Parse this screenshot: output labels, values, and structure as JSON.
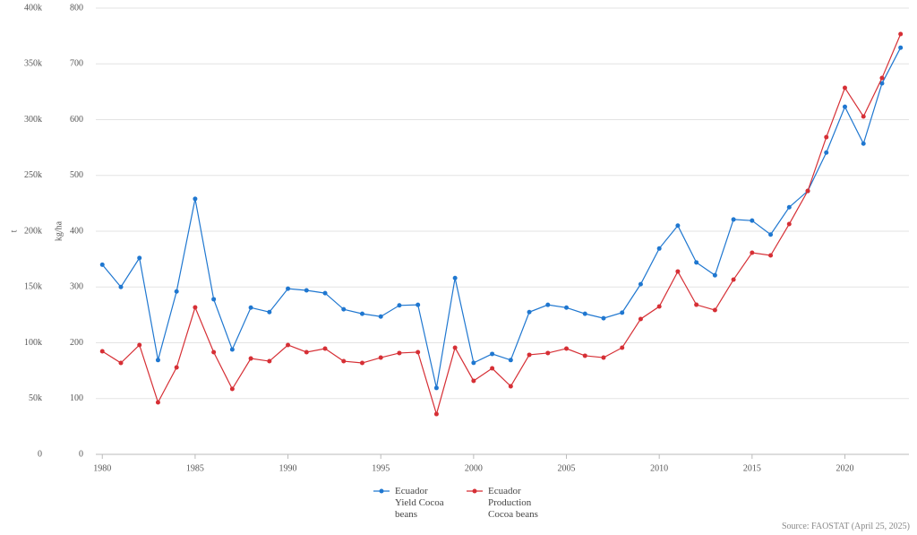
{
  "chart_data": {
    "type": "line",
    "y_label": "t",
    "y2_label": "kg/ha",
    "source": "Source: FAOSTAT (April 25, 2025)",
    "x": [
      1980,
      1981,
      1982,
      1983,
      1984,
      1985,
      1986,
      1987,
      1988,
      1989,
      1990,
      1991,
      1992,
      1993,
      1994,
      1995,
      1996,
      1997,
      1998,
      1999,
      2000,
      2001,
      2002,
      2003,
      2004,
      2005,
      2006,
      2007,
      2008,
      2009,
      2010,
      2011,
      2012,
      2013,
      2014,
      2015,
      2016,
      2017,
      2018,
      2019,
      2020,
      2021,
      2022,
      2023
    ],
    "xlim": [
      1979.65,
      2023.45
    ],
    "xticks": [
      1980,
      1985,
      1990,
      1995,
      2000,
      2005,
      2010,
      2015,
      2020
    ],
    "ylim": [
      0,
      400000
    ],
    "yticks": [
      0,
      {
        "value": 50000,
        "label": "50k"
      },
      {
        "value": 100000,
        "label": "100k"
      },
      {
        "value": 150000,
        "label": "150k"
      },
      {
        "value": 200000,
        "label": "200k"
      },
      {
        "value": 250000,
        "label": "250k"
      },
      {
        "value": 300000,
        "label": "300k"
      },
      {
        "value": 350000,
        "label": "350k"
      },
      {
        "value": 400000,
        "label": "400k"
      }
    ],
    "y2lim": [
      0,
      800
    ],
    "y2ticks": [
      0,
      100,
      200,
      300,
      400,
      500,
      600,
      700,
      800
    ],
    "grid": true,
    "series": [
      {
        "name": "Ecuador Yield Cocoa beans",
        "color": "#1f77d0",
        "axis": "y2",
        "values": [
          340,
          300,
          352,
          169,
          292,
          458,
          278,
          188,
          263,
          255,
          297,
          294,
          289,
          260,
          252,
          247,
          267,
          268,
          119,
          316,
          164,
          180,
          169,
          255,
          268,
          263,
          252,
          244,
          254,
          305,
          369,
          410,
          344,
          321,
          421,
          419,
          394,
          443,
          472,
          541,
          623,
          557,
          665,
          729
        ]
      },
      {
        "name": "Ecuador Production Cocoa beans",
        "color": "#d62f35",
        "values": [
          92400,
          81900,
          98000,
          46600,
          77900,
          131700,
          91600,
          58600,
          85900,
          83500,
          98000,
          91600,
          94800,
          83500,
          81900,
          86700,
          90800,
          91600,
          36100,
          95600,
          65900,
          77100,
          61000,
          89200,
          90800,
          94800,
          88400,
          86700,
          95600,
          121300,
          132500,
          163900,
          134100,
          129300,
          156600,
          180700,
          178300,
          206400,
          236100,
          284300,
          328500,
          302800,
          337300,
          376700
        ]
      }
    ]
  }
}
